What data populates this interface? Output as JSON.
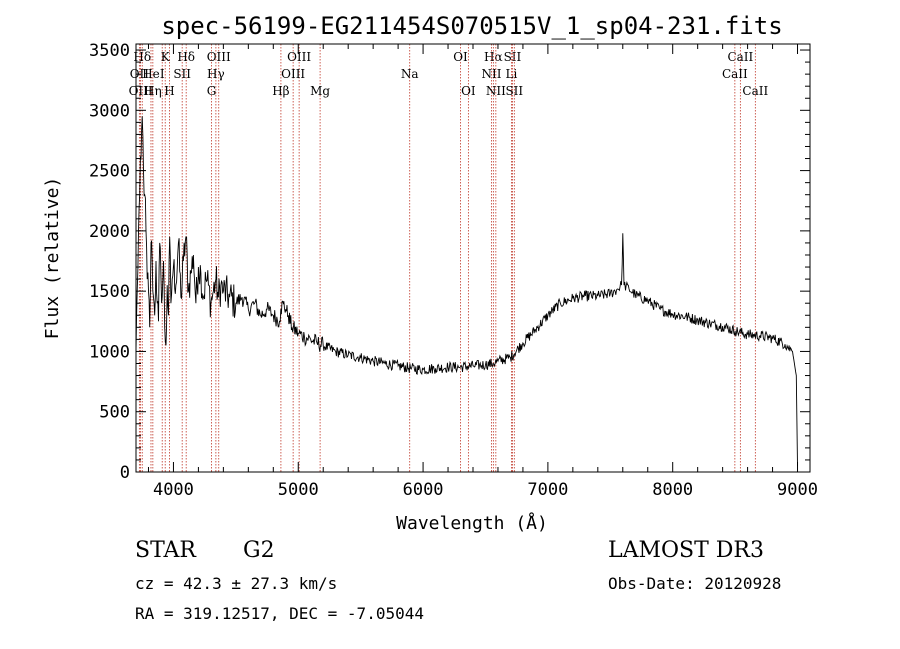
{
  "chart_data": {
    "type": "line",
    "title": "spec-56199-EG211454S070515V_1_sp04-231.fits",
    "xlabel": "Wavelength (Å)",
    "ylabel": "Flux (relative)",
    "xlim": [
      3700,
      9100
    ],
    "ylim": [
      0,
      3550
    ],
    "x_ticks": [
      "4000",
      "5000",
      "6000",
      "7000",
      "8000",
      "9000"
    ],
    "y_ticks": [
      "0",
      "500",
      "1000",
      "1500",
      "2000",
      "2500",
      "3000",
      "3500"
    ],
    "grid": false,
    "series": [
      {
        "x": [
          3700,
          3710,
          3720,
          3730,
          3740,
          3750,
          3760,
          3770,
          3780,
          3790,
          3800,
          3810,
          3820,
          3830,
          3840,
          3850,
          3860,
          3870,
          3880,
          3890,
          3900,
          3910,
          3920,
          3930,
          3940,
          3950,
          3960,
          3970,
          3980,
          3990,
          4000,
          4020,
          4040,
          4060,
          4080,
          4100,
          4120,
          4140,
          4160,
          4180,
          4200,
          4220,
          4240,
          4260,
          4280,
          4300,
          4320,
          4340,
          4360,
          4380,
          4400,
          4450,
          4500,
          4550,
          4600,
          4650,
          4700,
          4750,
          4800,
          4850,
          4860,
          4880,
          4900,
          4920,
          4950,
          5000,
          5050,
          5100,
          5150,
          5200,
          5300,
          5400,
          5500,
          5600,
          5700,
          5800,
          5900,
          6000,
          6100,
          6200,
          6300,
          6400,
          6500,
          6560,
          6600,
          6700,
          6800,
          6900,
          7000,
          7100,
          7200,
          7300,
          7400,
          7500,
          7550,
          7590,
          7600,
          7610,
          7650,
          7700,
          7800,
          7900,
          8000,
          8100,
          8200,
          8300,
          8400,
          8500,
          8600,
          8700,
          8800,
          8900,
          8960,
          8990,
          9000
        ],
        "y": [
          1000,
          1500,
          2000,
          2300,
          2600,
          2950,
          2500,
          2300,
          2000,
          1600,
          1500,
          1200,
          1900,
          1750,
          1450,
          1300,
          1750,
          1400,
          1250,
          1900,
          1600,
          1450,
          1750,
          1200,
          1050,
          1550,
          1300,
          1950,
          1400,
          1600,
          1700,
          1550,
          1900,
          1450,
          1750,
          1950,
          1500,
          1650,
          1800,
          1400,
          1700,
          1650,
          1450,
          1600,
          1550,
          1400,
          1500,
          1600,
          1450,
          1550,
          1500,
          1450,
          1400,
          1450,
          1350,
          1400,
          1300,
          1350,
          1300,
          1250,
          1350,
          1400,
          1350,
          1300,
          1200,
          1150,
          1120,
          1100,
          1070,
          1050,
          1000,
          970,
          950,
          920,
          900,
          880,
          860,
          850,
          860,
          870,
          870,
          880,
          890,
          900,
          920,
          950,
          1070,
          1180,
          1300,
          1400,
          1440,
          1460,
          1460,
          1480,
          1510,
          1550,
          1980,
          1550,
          1520,
          1470,
          1420,
          1350,
          1310,
          1290,
          1260,
          1230,
          1210,
          1170,
          1140,
          1130,
          1110,
          1060,
          1000,
          800,
          50
        ]
      }
    ],
    "spectral_lines": [
      {
        "label": "Hδ",
        "x": 3750,
        "row": 1
      },
      {
        "label": "OII",
        "x": 3727,
        "row": 2
      },
      {
        "label": "OIII",
        "x": 3737,
        "row": 3
      },
      {
        "label": "He",
        "x": 3820,
        "row": 2
      },
      {
        "label": "Hη",
        "x": 3835,
        "row": 3
      },
      {
        "label": "K",
        "x": 3934,
        "row": 1
      },
      {
        "label": "I",
        "x": 3910,
        "row": 2
      },
      {
        "label": "H",
        "x": 3968,
        "row": 3
      },
      {
        "label": "Hδ",
        "x": 4102,
        "row": 1
      },
      {
        "label": "SII",
        "x": 4070,
        "row": 2
      },
      {
        "label": "OIII",
        "x": 4363,
        "row": 1
      },
      {
        "label": "Hγ",
        "x": 4340,
        "row": 2
      },
      {
        "label": "G",
        "x": 4305,
        "row": 3
      },
      {
        "label": "OIII",
        "x": 5007,
        "row": 1
      },
      {
        "label": "OIII",
        "x": 4959,
        "row": 2
      },
      {
        "label": "Hβ",
        "x": 4861,
        "row": 3
      },
      {
        "label": "Mg",
        "x": 5175,
        "row": 3
      },
      {
        "label": "Na",
        "x": 5893,
        "row": 2
      },
      {
        "label": "OI",
        "x": 6300,
        "row": 1
      },
      {
        "label": "OI",
        "x": 6363,
        "row": 3
      },
      {
        "label": "Hα",
        "x": 6563,
        "row": 1
      },
      {
        "label": "SII",
        "x": 6716,
        "row": 1
      },
      {
        "label": "NII",
        "x": 6548,
        "row": 2
      },
      {
        "label": "Li",
        "x": 6708,
        "row": 2
      },
      {
        "label": "NII",
        "x": 6583,
        "row": 3
      },
      {
        "label": "SII",
        "x": 6731,
        "row": 3
      },
      {
        "label": "CaII",
        "x": 8542,
        "row": 1
      },
      {
        "label": "CaII",
        "x": 8498,
        "row": 2
      },
      {
        "label": "CaII",
        "x": 8662,
        "row": 3
      }
    ]
  },
  "info": {
    "class": "STAR",
    "subclass": "G2",
    "survey": "LAMOST DR3",
    "cz": "cz = 42.3 ± 27.3 km/s",
    "obs_date": "Obs-Date: 20120928",
    "radec": "RA = 319.12517, DEC =  -7.05044"
  }
}
